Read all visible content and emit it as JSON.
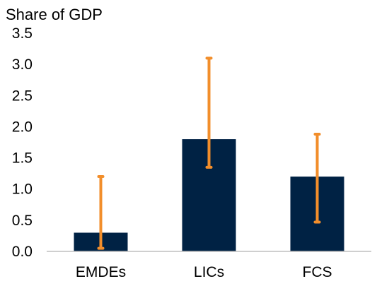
{
  "chart_data": {
    "type": "bar",
    "title": "",
    "ylabel": "Share of GDP",
    "xlabel": "",
    "categories": [
      "EMDEs",
      "LICs",
      "FCS"
    ],
    "values": [
      0.3,
      1.8,
      1.2
    ],
    "error_range": [
      {
        "low": 0.05,
        "high": 1.2
      },
      {
        "low": 1.35,
        "high": 3.1
      },
      {
        "low": 0.47,
        "high": 1.88
      }
    ],
    "ylim": [
      0,
      3.5
    ],
    "yticks": [
      "0.0",
      "0.5",
      "1.0",
      "1.5",
      "2.0",
      "2.5",
      "3.0",
      "3.5"
    ],
    "grid": false,
    "legend": "none",
    "colors": {
      "bar": "#002244",
      "error": "#F28E2B",
      "axis": "#BFBFBF",
      "text": "#000000"
    }
  }
}
